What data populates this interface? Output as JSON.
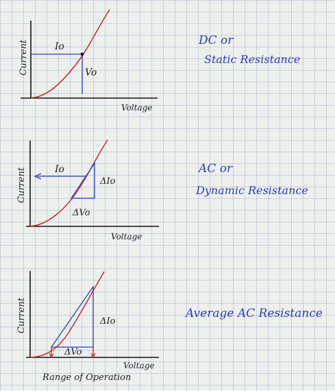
{
  "diagrams": [
    {
      "ylabel": "Current",
      "xlabel": "Voltage",
      "current_label": "Io",
      "voltage_label": "Vo",
      "title_line1": "DC or",
      "title_line2": "Static Resistance"
    },
    {
      "ylabel": "Current",
      "xlabel": "Voltage",
      "current_label": "Io",
      "delta_current_label": "ΔIo",
      "delta_voltage_label": "ΔVo",
      "title_line1": "AC or",
      "title_line2": "Dynamic Resistance"
    },
    {
      "ylabel": "Current",
      "xlabel": "Voltage",
      "delta_current_label": "ΔIo",
      "delta_voltage_label": "ΔVo",
      "range_label": "Range of Operation",
      "title": "Average AC Resistance"
    }
  ],
  "colors": {
    "curve": "#c0282d",
    "construction": "#2a3fb8",
    "axes": "#111111"
  }
}
